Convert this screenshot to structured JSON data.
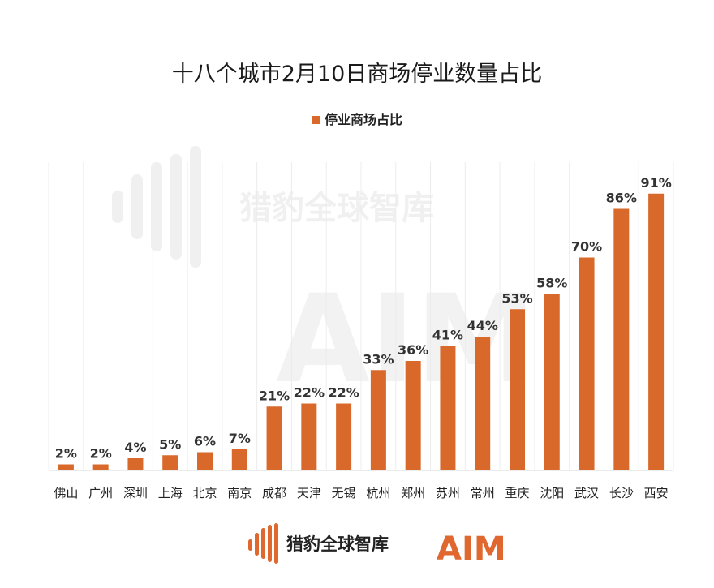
{
  "chart_data": {
    "type": "bar",
    "title": "十八个城市2月10日商场停业数量占比",
    "xlabel": "",
    "ylabel": "",
    "ylim": [
      0,
      100
    ],
    "grid": "vertical",
    "legend_placement": "top-center",
    "categories": [
      "佛山",
      "广州",
      "深圳",
      "上海",
      "北京",
      "南京",
      "成都",
      "天津",
      "无锡",
      "杭州",
      "郑州",
      "苏州",
      "常州",
      "重庆",
      "沈阳",
      "武汉",
      "长沙",
      "西安"
    ],
    "series": [
      {
        "name": "停业商场占比",
        "values": [
          2,
          2,
          4,
          5,
          6,
          7,
          21,
          22,
          22,
          33,
          36,
          41,
          44,
          53,
          58,
          70,
          86,
          91
        ],
        "labels": [
          "2%",
          "2%",
          "4%",
          "5%",
          "6%",
          "7%",
          "21%",
          "22%",
          "22%",
          "33%",
          "36%",
          "41%",
          "44%",
          "53%",
          "58%",
          "70%",
          "86%",
          "91%"
        ],
        "color": "#d9692b"
      }
    ]
  },
  "brand": {
    "watermark_text": "猎豹全球智库",
    "footer_text": "猎豹全球智库",
    "aim_logo_text": "AIM",
    "accent_color": "#e0672e"
  }
}
